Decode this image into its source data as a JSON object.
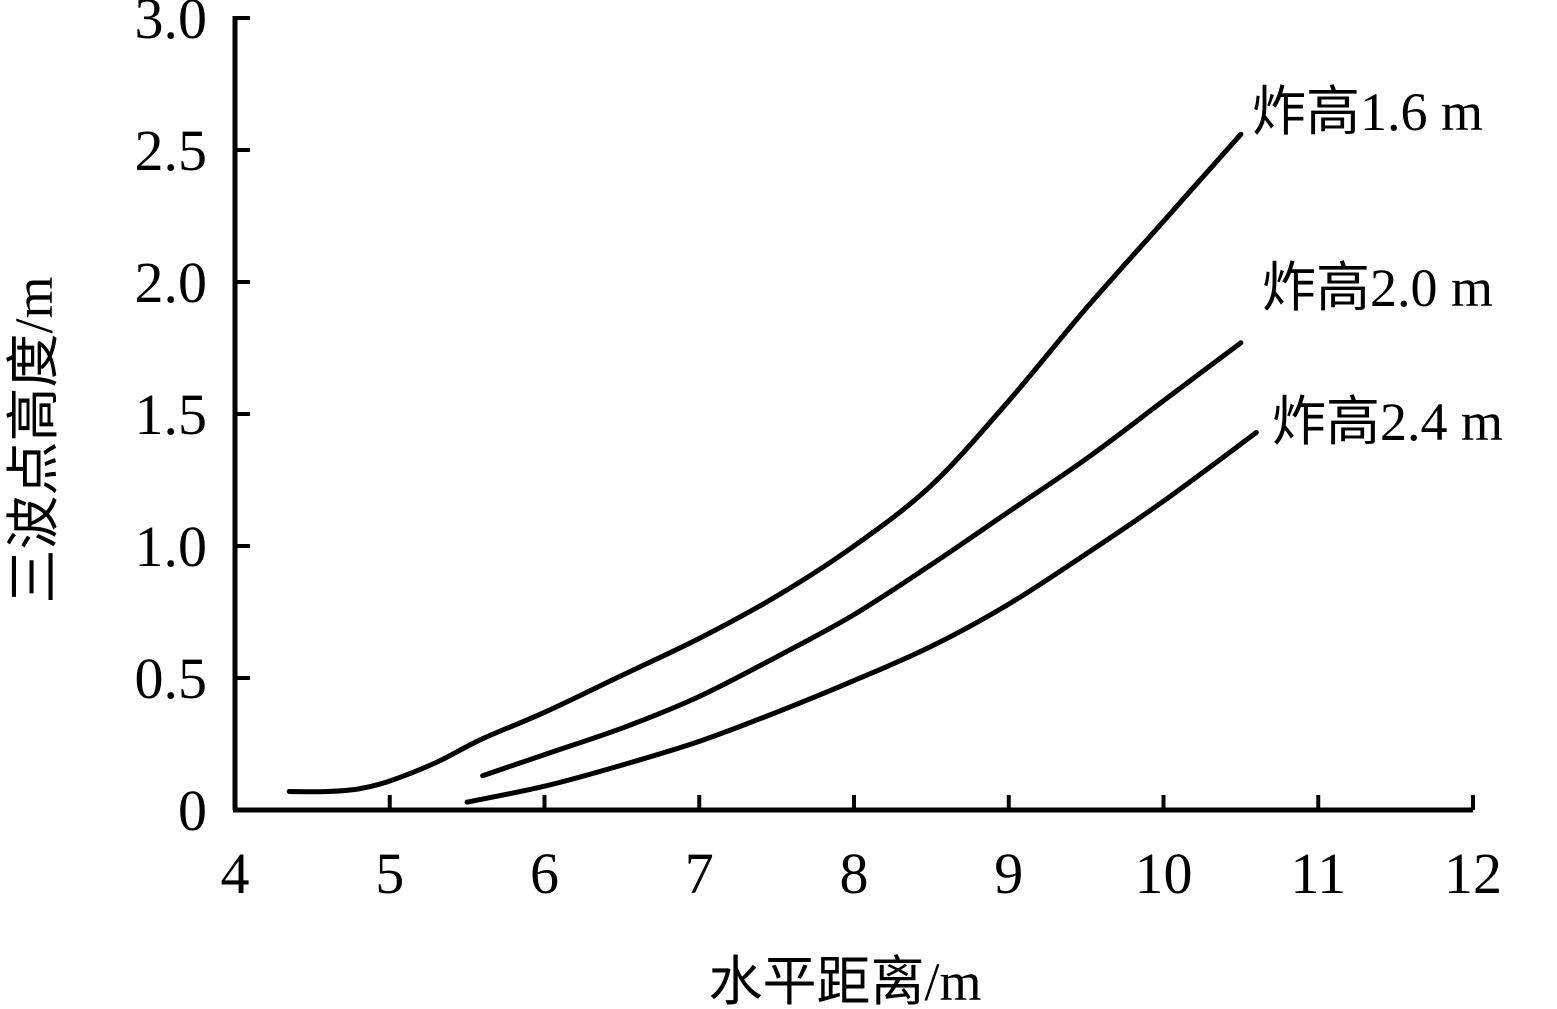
{
  "chart_data": {
    "type": "line",
    "title": "",
    "xlabel": "水平距离/m",
    "ylabel": "三波点高度/m",
    "xlim": [
      4,
      12
    ],
    "ylim": [
      0,
      3.0
    ],
    "x_ticks": [
      4,
      5,
      6,
      7,
      8,
      9,
      10,
      11,
      12
    ],
    "x_tick_labels": [
      "4",
      "5",
      "6",
      "7",
      "8",
      "9",
      "10",
      "11",
      "12"
    ],
    "y_ticks": [
      0,
      0.5,
      1.0,
      1.5,
      2.0,
      2.5,
      3.0
    ],
    "y_tick_labels": [
      "0",
      "0.5",
      "1.0",
      "1.5",
      "2.0",
      "2.5",
      "3.0"
    ],
    "grid": false,
    "series": [
      {
        "name": "炸高1.6 m",
        "x": [
          4.35,
          4.6,
          4.8,
          5.0,
          5.3,
          5.6,
          6.0,
          6.5,
          7.0,
          7.5,
          8.0,
          8.5,
          9.0,
          9.5,
          10.0,
          10.5
        ],
        "y": [
          0.07,
          0.07,
          0.08,
          0.11,
          0.18,
          0.27,
          0.37,
          0.51,
          0.65,
          0.81,
          1.0,
          1.23,
          1.55,
          1.9,
          2.23,
          2.56
        ]
      },
      {
        "name": "炸高2.0 m",
        "x": [
          5.6,
          6.0,
          6.5,
          7.0,
          7.5,
          8.0,
          8.5,
          9.0,
          9.5,
          10.0,
          10.5
        ],
        "y": [
          0.13,
          0.21,
          0.31,
          0.43,
          0.58,
          0.74,
          0.93,
          1.13,
          1.33,
          1.55,
          1.77
        ]
      },
      {
        "name": "炸高2.4 m",
        "x": [
          5.5,
          6.0,
          6.5,
          7.0,
          7.5,
          8.0,
          8.5,
          9.0,
          9.5,
          10.0,
          10.6
        ],
        "y": [
          0.03,
          0.09,
          0.17,
          0.26,
          0.37,
          0.49,
          0.62,
          0.78,
          0.97,
          1.17,
          1.43
        ]
      }
    ]
  }
}
